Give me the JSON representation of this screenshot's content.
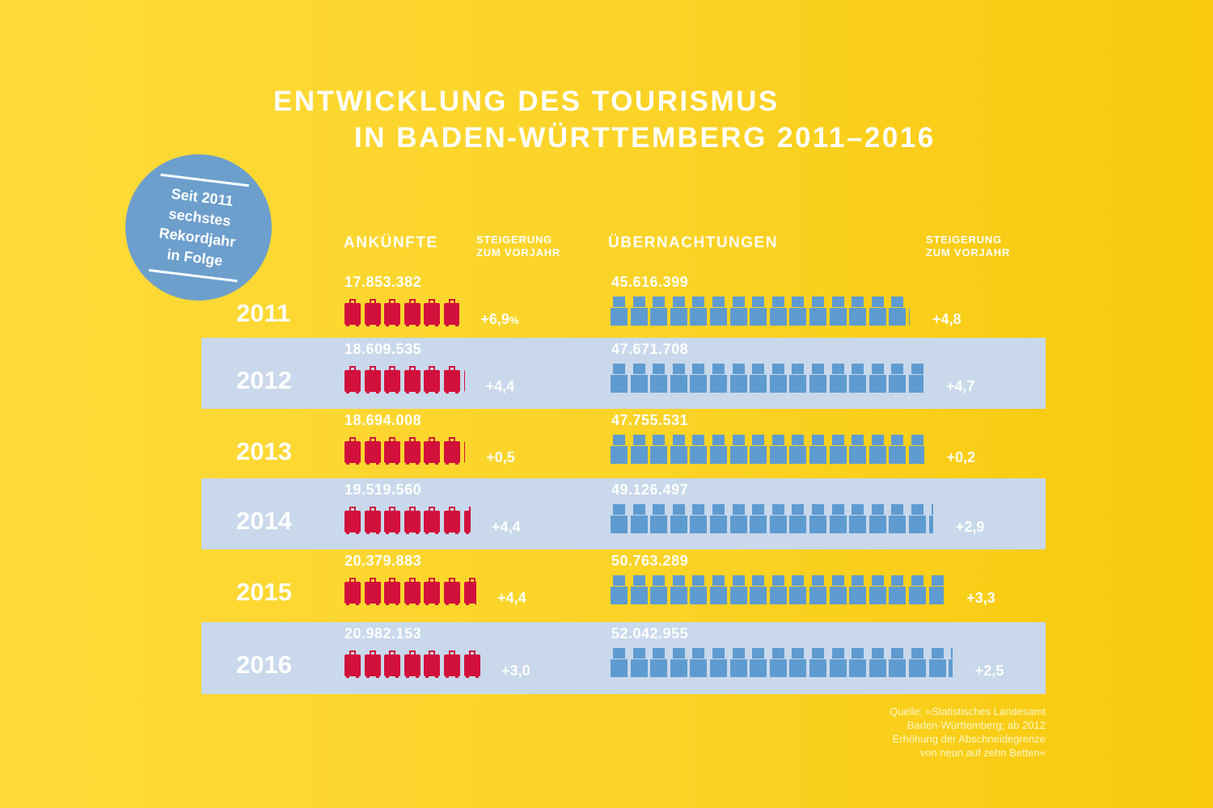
{
  "title": {
    "line1": "ENTWICKLUNG DES TOURISMUS",
    "line2": "IN BADEN-WÜRTTEMBERG 2011–2016"
  },
  "badge": {
    "lines": [
      "Seit 2011",
      "sechstes",
      "Rekordjahr",
      "in Folge"
    ]
  },
  "headers": {
    "arrivals": "ANKÜNFTE",
    "arrivals_change": [
      "STEIGERUNG",
      "ZUM VORJAHR"
    ],
    "overnights": "ÜBERNACHTUNGEN",
    "overnights_change": [
      "STEIGERUNG",
      "ZUM VORJAHR"
    ]
  },
  "source": [
    "Quelle: »Statistisches Landesamt",
    "Baden-Württemberg; ab 2012",
    "Erhöhung der Abschneidegrenze",
    "von neun auf zehn Betten«"
  ],
  "colors": {
    "arrivals": "#d2103c",
    "overnights": "#5e9bd0",
    "band": "#c9d8eb",
    "background": "#fbd326"
  },
  "chart_data": {
    "type": "bar",
    "categories": [
      "2011",
      "2012",
      "2013",
      "2014",
      "2015",
      "2016"
    ],
    "series": [
      {
        "name": "ANKÜNFTE",
        "icon": "suitcase-icon",
        "labels": [
          "17.853.382",
          "18.609.535",
          "18.694.008",
          "19.519.560",
          "20.379.883",
          "20.982.153"
        ],
        "values": [
          17853382,
          18609535,
          18694008,
          19519560,
          20379883,
          20982153
        ],
        "change_labels": [
          "+6,9",
          "+4,4",
          "+0,5",
          "+4,4",
          "+4,4",
          "+3,0"
        ],
        "change_unit_first": "%"
      },
      {
        "name": "ÜBERNACHTUNGEN",
        "icon": "bed-icon",
        "labels": [
          "45.616.399",
          "47.671.708",
          "47.755.531",
          "49.126.497",
          "50.763.289",
          "52.042.955"
        ],
        "values": [
          45616399,
          47671708,
          47755531,
          49126497,
          50763289,
          52042955
        ],
        "change_labels": [
          "+4,8",
          "+4,7",
          "+0,2",
          "+2,9",
          "+3,3",
          "+2,5"
        ]
      }
    ]
  }
}
